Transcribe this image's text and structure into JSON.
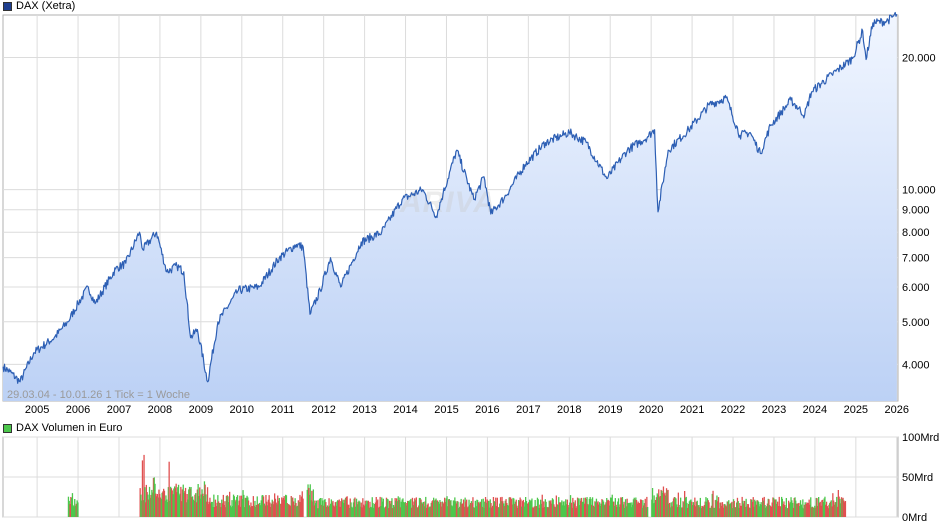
{
  "legend_price": "DAX (Xetra)",
  "legend_volume": "DAX Volumen in Euro",
  "range_note": "29.03.04 - 10.01.26   1 Tick = 1 Woche",
  "watermark": "ARIVA",
  "colors": {
    "price_line": "#2d5fb4",
    "price_fill_top": "#f1f6ff",
    "price_fill_bottom": "#bcd1f5",
    "grid": "#dcdcdc",
    "volume_up": "#4cc74c",
    "volume_down": "#e05050",
    "legend_price_swatch": "#1f3f8f",
    "legend_volume_swatch": "#4cc74c"
  },
  "chart_data": [
    {
      "type": "line",
      "title": "DAX (Xetra)",
      "y_scale": "log",
      "ylim": [
        3300,
        25000
      ],
      "y_ticks": [
        {
          "value": 4000,
          "label": "4.000"
        },
        {
          "value": 5000,
          "label": "5.000"
        },
        {
          "value": 6000,
          "label": "6.000"
        },
        {
          "value": 7000,
          "label": "7.000"
        },
        {
          "value": 8000,
          "label": "8.000"
        },
        {
          "value": 9000,
          "label": "9.000"
        },
        {
          "value": 10000,
          "label": "10.000"
        },
        {
          "value": 20000,
          "label": "20.000"
        }
      ],
      "x_ticks": [
        "2005",
        "2006",
        "2007",
        "2008",
        "2009",
        "2010",
        "2011",
        "2012",
        "2013",
        "2014",
        "2015",
        "2016",
        "2017",
        "2018",
        "2019",
        "2020",
        "2021",
        "2022",
        "2023",
        "2024",
        "2025",
        "2026"
      ],
      "series": [
        {
          "points": [
            {
              "x": "2004-03",
              "y": 3950
            },
            {
              "x": "2004-05",
              "y": 3850
            },
            {
              "x": "2004-08",
              "y": 3650
            },
            {
              "x": "2004-12",
              "y": 4250
            },
            {
              "x": "2005-06",
              "y": 4600
            },
            {
              "x": "2005-10",
              "y": 5000
            },
            {
              "x": "2006-01",
              "y": 5500
            },
            {
              "x": "2006-04",
              "y": 6000
            },
            {
              "x": "2006-06",
              "y": 5500
            },
            {
              "x": "2006-12",
              "y": 6600
            },
            {
              "x": "2007-03",
              "y": 6800
            },
            {
              "x": "2007-07",
              "y": 8000
            },
            {
              "x": "2007-08",
              "y": 7300
            },
            {
              "x": "2007-12",
              "y": 8000
            },
            {
              "x": "2008-03",
              "y": 6500
            },
            {
              "x": "2008-06",
              "y": 6700
            },
            {
              "x": "2008-08",
              "y": 6500
            },
            {
              "x": "2008-10",
              "y": 4600
            },
            {
              "x": "2008-12",
              "y": 4800
            },
            {
              "x": "2009-03",
              "y": 3650
            },
            {
              "x": "2009-06",
              "y": 5000
            },
            {
              "x": "2009-12",
              "y": 5900
            },
            {
              "x": "2010-06",
              "y": 6000
            },
            {
              "x": "2010-12",
              "y": 7000
            },
            {
              "x": "2011-05",
              "y": 7500
            },
            {
              "x": "2011-07",
              "y": 7400
            },
            {
              "x": "2011-09",
              "y": 5200
            },
            {
              "x": "2011-12",
              "y": 5900
            },
            {
              "x": "2012-03",
              "y": 7000
            },
            {
              "x": "2012-06",
              "y": 6000
            },
            {
              "x": "2012-12",
              "y": 7600
            },
            {
              "x": "2013-06",
              "y": 8000
            },
            {
              "x": "2013-12",
              "y": 9500
            },
            {
              "x": "2014-06",
              "y": 10000
            },
            {
              "x": "2014-10",
              "y": 8700
            },
            {
              "x": "2014-12",
              "y": 9800
            },
            {
              "x": "2015-04",
              "y": 12300
            },
            {
              "x": "2015-09",
              "y": 9500
            },
            {
              "x": "2015-12",
              "y": 10700
            },
            {
              "x": "2016-02",
              "y": 8800
            },
            {
              "x": "2016-06",
              "y": 9600
            },
            {
              "x": "2016-12",
              "y": 11400
            },
            {
              "x": "2017-06",
              "y": 12800
            },
            {
              "x": "2017-11",
              "y": 13300
            },
            {
              "x": "2018-01",
              "y": 13500
            },
            {
              "x": "2018-06",
              "y": 12800
            },
            {
              "x": "2018-12",
              "y": 10600
            },
            {
              "x": "2019-06",
              "y": 12300
            },
            {
              "x": "2019-12",
              "y": 13200
            },
            {
              "x": "2020-02",
              "y": 13700
            },
            {
              "x": "2020-03",
              "y": 8900
            },
            {
              "x": "2020-06",
              "y": 12300
            },
            {
              "x": "2020-12",
              "y": 13700
            },
            {
              "x": "2021-06",
              "y": 15600
            },
            {
              "x": "2021-11",
              "y": 16200
            },
            {
              "x": "2022-03",
              "y": 13300
            },
            {
              "x": "2022-06",
              "y": 13500
            },
            {
              "x": "2022-09",
              "y": 12100
            },
            {
              "x": "2022-12",
              "y": 14000
            },
            {
              "x": "2023-06",
              "y": 16000
            },
            {
              "x": "2023-10",
              "y": 14800
            },
            {
              "x": "2023-12",
              "y": 16700
            },
            {
              "x": "2024-06",
              "y": 18300
            },
            {
              "x": "2024-12",
              "y": 19900
            },
            {
              "x": "2025-03",
              "y": 23000
            },
            {
              "x": "2025-04",
              "y": 19800
            },
            {
              "x": "2025-06",
              "y": 24000
            },
            {
              "x": "2025-10",
              "y": 24200
            },
            {
              "x": "2026-01",
              "y": 25100
            }
          ]
        }
      ]
    },
    {
      "type": "bar",
      "title": "DAX Volumen in Euro",
      "ylim": [
        0,
        100
      ],
      "y_ticks": [
        {
          "value": 100,
          "label": "100Mrd"
        },
        {
          "value": 50,
          "label": "50Mrd"
        },
        {
          "value": 0,
          "label": "0Mrd"
        }
      ],
      "x_ticks": [
        "2005",
        "2006",
        "2007",
        "2008",
        "2009",
        "2010",
        "2011",
        "2012",
        "2013",
        "2014",
        "2015",
        "2016",
        "2017",
        "2018",
        "2019",
        "2020",
        "2021",
        "2022",
        "2023",
        "2024",
        "2025",
        "2026"
      ],
      "segments": [
        {
          "from": "2005-10",
          "to": "2006-01",
          "typical": 18,
          "peak": 30
        },
        {
          "from": "2007-07",
          "to": "2009-03",
          "typical": 30,
          "peak": 82
        },
        {
          "from": "2009-03",
          "to": "2011-07",
          "typical": 20,
          "peak": 35
        },
        {
          "from": "2011-08",
          "to": "2011-10",
          "typical": 32,
          "peak": 50
        },
        {
          "from": "2011-10",
          "to": "2019-12",
          "typical": 18,
          "peak": 28
        },
        {
          "from": "2020-01",
          "to": "2020-06",
          "typical": 28,
          "peak": 60
        },
        {
          "from": "2020-06",
          "to": "2024-10",
          "typical": 18,
          "peak": 35
        }
      ]
    }
  ]
}
